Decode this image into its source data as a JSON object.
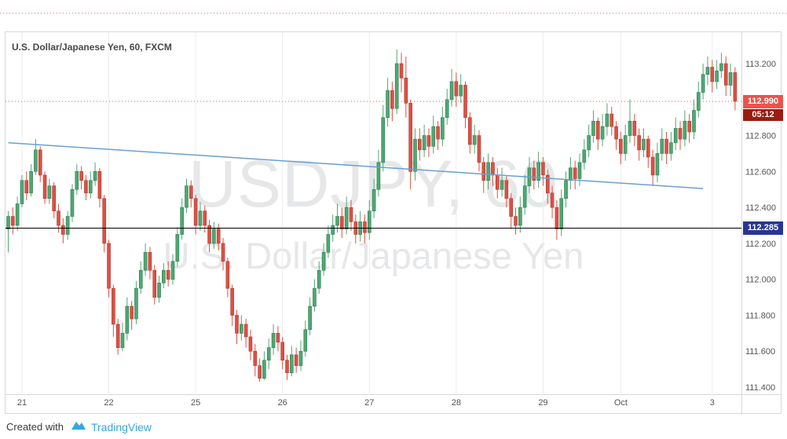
{
  "legend": {
    "title": "U.S. Dollar/Japanese Yen, 60, FXCM"
  },
  "watermark": {
    "line1": "USDJPY, 60",
    "line2": "U.S. Dollar/Japanese Yen"
  },
  "attribution": {
    "created_with": "Created with",
    "brand": "TradingView"
  },
  "chart_data": {
    "type": "candlestick",
    "symbol": "USDJPY",
    "title": "U.S. Dollar/Japanese Yen",
    "interval": "60",
    "provider": "FXCM",
    "ohlc_order": "open,high,low,close",
    "y_axis": [
      113.2,
      112.8,
      112.6,
      112.4,
      112.2,
      112.0,
      111.8,
      111.6,
      111.4
    ],
    "x_ticks": [
      {
        "label": "21",
        "index": 3
      },
      {
        "label": "22",
        "index": 22
      },
      {
        "label": "25",
        "index": 41
      },
      {
        "label": "26",
        "index": 60
      },
      {
        "label": "27",
        "index": 79
      },
      {
        "label": "28",
        "index": 98
      },
      {
        "label": "29",
        "index": 117
      },
      {
        "label": "Oct",
        "index": 134
      },
      {
        "label": "3",
        "index": 154
      }
    ],
    "price_lines": [
      {
        "id": "last-price",
        "price": 112.99,
        "label": "112.990",
        "style": "dotted",
        "color": "#e8544d",
        "axis_label_bg": "#e8544d"
      },
      {
        "id": "level",
        "price": 112.285,
        "label": "112.285",
        "style": "solid",
        "color": "#000000",
        "axis_label_bg": "#283593"
      }
    ],
    "countdown": {
      "text": "05:12",
      "bg": "#9b1c10"
    },
    "upper_line": {
      "price": 113.48,
      "style": "dotted",
      "color": "#e8544d"
    },
    "trendline": {
      "from_index": 0,
      "from_price": 112.76,
      "to_index": 152,
      "to_price": 112.505,
      "color": "#6b9fd4"
    },
    "colors": {
      "up": "#4fa873",
      "up_border": "#2c7a4f",
      "down": "#dd5144",
      "down_border": "#a93a30",
      "grid": "#ececec",
      "axis_text": "#555555",
      "border": "#d6d8dc"
    },
    "candles": [
      [
        112.28,
        112.38,
        112.15,
        112.35
      ],
      [
        112.35,
        112.4,
        112.25,
        112.3
      ],
      [
        112.3,
        112.46,
        112.27,
        112.42
      ],
      [
        112.42,
        112.58,
        112.4,
        112.55
      ],
      [
        112.55,
        112.6,
        112.44,
        112.48
      ],
      [
        112.48,
        112.64,
        112.46,
        112.6
      ],
      [
        112.6,
        112.78,
        112.58,
        112.72
      ],
      [
        112.72,
        112.74,
        112.54,
        112.58
      ],
      [
        112.58,
        112.6,
        112.42,
        112.45
      ],
      [
        112.45,
        112.56,
        112.42,
        112.52
      ],
      [
        112.52,
        112.54,
        112.34,
        112.38
      ],
      [
        112.38,
        112.42,
        112.26,
        112.3
      ],
      [
        112.3,
        112.34,
        112.2,
        112.25
      ],
      [
        112.25,
        112.38,
        112.22,
        112.35
      ],
      [
        112.35,
        112.53,
        112.32,
        112.5
      ],
      [
        112.5,
        112.64,
        112.47,
        112.6
      ],
      [
        112.6,
        112.63,
        112.5,
        112.55
      ],
      [
        112.55,
        112.58,
        112.44,
        112.48
      ],
      [
        112.48,
        112.6,
        112.45,
        112.55
      ],
      [
        112.55,
        112.65,
        112.52,
        112.6
      ],
      [
        112.6,
        112.62,
        112.4,
        112.45
      ],
      [
        112.45,
        112.47,
        112.15,
        112.2
      ],
      [
        112.2,
        112.22,
        111.9,
        111.95
      ],
      [
        111.95,
        111.97,
        111.68,
        111.75
      ],
      [
        111.75,
        111.78,
        111.58,
        111.62
      ],
      [
        111.62,
        111.76,
        111.6,
        111.7
      ],
      [
        111.7,
        111.9,
        111.66,
        111.85
      ],
      [
        111.85,
        111.88,
        111.72,
        111.78
      ],
      [
        111.78,
        111.99,
        111.75,
        111.95
      ],
      [
        111.95,
        112.1,
        111.92,
        112.05
      ],
      [
        112.05,
        112.2,
        112.02,
        112.15
      ],
      [
        112.15,
        112.18,
        112.0,
        112.05
      ],
      [
        112.05,
        112.08,
        111.86,
        111.9
      ],
      [
        111.9,
        112.02,
        111.87,
        111.98
      ],
      [
        111.98,
        112.09,
        111.95,
        112.05
      ],
      [
        112.05,
        112.1,
        111.96,
        112.0
      ],
      [
        112.0,
        112.14,
        111.97,
        112.1
      ],
      [
        112.1,
        112.29,
        112.07,
        112.25
      ],
      [
        112.25,
        112.45,
        112.22,
        112.4
      ],
      [
        112.4,
        112.56,
        112.37,
        112.52
      ],
      [
        112.52,
        112.55,
        112.4,
        112.45
      ],
      [
        112.45,
        112.47,
        112.25,
        112.3
      ],
      [
        112.3,
        112.43,
        112.27,
        112.38
      ],
      [
        112.38,
        112.41,
        112.26,
        112.3
      ],
      [
        112.3,
        112.33,
        112.15,
        112.2
      ],
      [
        112.2,
        112.32,
        112.17,
        112.28
      ],
      [
        112.28,
        112.31,
        112.16,
        112.2
      ],
      [
        112.2,
        112.23,
        112.05,
        112.1
      ],
      [
        112.1,
        112.12,
        111.9,
        111.95
      ],
      [
        111.95,
        111.97,
        111.74,
        111.8
      ],
      [
        111.8,
        111.83,
        111.64,
        111.7
      ],
      [
        111.7,
        111.8,
        111.66,
        111.75
      ],
      [
        111.75,
        111.78,
        111.62,
        111.68
      ],
      [
        111.68,
        111.72,
        111.55,
        111.6
      ],
      [
        111.6,
        111.64,
        111.46,
        111.52
      ],
      [
        111.52,
        111.56,
        111.43,
        111.45
      ],
      [
        111.45,
        111.6,
        111.44,
        111.55
      ],
      [
        111.55,
        111.67,
        111.5,
        111.62
      ],
      [
        111.62,
        111.75,
        111.58,
        111.7
      ],
      [
        111.7,
        111.74,
        111.6,
        111.65
      ],
      [
        111.65,
        111.68,
        111.5,
        111.55
      ],
      [
        111.55,
        111.58,
        111.44,
        111.48
      ],
      [
        111.48,
        111.63,
        111.46,
        111.58
      ],
      [
        111.58,
        111.62,
        111.48,
        111.52
      ],
      [
        111.52,
        111.66,
        111.49,
        111.6
      ],
      [
        111.6,
        111.77,
        111.57,
        111.72
      ],
      [
        111.72,
        111.9,
        111.69,
        111.85
      ],
      [
        111.85,
        112.0,
        111.82,
        111.95
      ],
      [
        111.95,
        112.1,
        111.92,
        112.05
      ],
      [
        112.05,
        112.2,
        112.02,
        112.15
      ],
      [
        112.15,
        112.3,
        112.12,
        112.25
      ],
      [
        112.25,
        112.36,
        112.21,
        112.3
      ],
      [
        112.3,
        112.42,
        112.26,
        112.35
      ],
      [
        112.35,
        112.4,
        112.23,
        112.28
      ],
      [
        112.28,
        112.46,
        112.25,
        112.4
      ],
      [
        112.4,
        112.44,
        112.27,
        112.32
      ],
      [
        112.32,
        112.36,
        112.2,
        112.25
      ],
      [
        112.25,
        112.38,
        112.21,
        112.32
      ],
      [
        112.32,
        112.36,
        112.2,
        112.26
      ],
      [
        112.26,
        112.44,
        112.22,
        112.38
      ],
      [
        112.38,
        112.56,
        112.34,
        112.5
      ],
      [
        112.5,
        112.72,
        112.46,
        112.65
      ],
      [
        112.65,
        112.97,
        112.6,
        112.9
      ],
      [
        112.9,
        113.12,
        112.85,
        113.05
      ],
      [
        113.05,
        113.1,
        112.88,
        112.95
      ],
      [
        112.95,
        113.28,
        112.92,
        113.2
      ],
      [
        113.2,
        113.26,
        113.04,
        113.12
      ],
      [
        113.12,
        113.24,
        112.9,
        112.98
      ],
      [
        112.98,
        113.0,
        112.5,
        112.6
      ],
      [
        112.6,
        112.84,
        112.55,
        112.78
      ],
      [
        112.78,
        112.84,
        112.66,
        112.72
      ],
      [
        112.72,
        112.86,
        112.68,
        112.8
      ],
      [
        112.8,
        112.84,
        112.68,
        112.74
      ],
      [
        112.74,
        112.91,
        112.7,
        112.85
      ],
      [
        112.85,
        112.88,
        112.72,
        112.78
      ],
      [
        112.78,
        112.96,
        112.74,
        112.9
      ],
      [
        112.9,
        113.06,
        112.86,
        113.0
      ],
      [
        113.0,
        113.17,
        112.96,
        113.1
      ],
      [
        113.1,
        113.15,
        112.96,
        113.02
      ],
      [
        113.02,
        113.14,
        112.98,
        113.08
      ],
      [
        113.08,
        113.1,
        112.84,
        112.9
      ],
      [
        112.9,
        112.93,
        112.7,
        112.75
      ],
      [
        112.75,
        112.86,
        112.7,
        112.8
      ],
      [
        112.8,
        112.83,
        112.6,
        112.65
      ],
      [
        112.65,
        112.68,
        112.48,
        112.55
      ],
      [
        112.55,
        112.7,
        112.5,
        112.65
      ],
      [
        112.65,
        112.68,
        112.52,
        112.58
      ],
      [
        112.58,
        112.62,
        112.45,
        112.5
      ],
      [
        112.5,
        112.62,
        112.46,
        112.55
      ],
      [
        112.55,
        112.58,
        112.4,
        112.45
      ],
      [
        112.45,
        112.48,
        112.28,
        112.35
      ],
      [
        112.35,
        112.4,
        112.25,
        112.3
      ],
      [
        112.3,
        112.46,
        112.26,
        112.4
      ],
      [
        112.4,
        112.58,
        112.36,
        112.52
      ],
      [
        112.52,
        112.68,
        112.48,
        112.62
      ],
      [
        112.62,
        112.66,
        112.5,
        112.55
      ],
      [
        112.55,
        112.71,
        112.51,
        112.65
      ],
      [
        112.65,
        112.68,
        112.52,
        112.58
      ],
      [
        112.58,
        112.61,
        112.42,
        112.48
      ],
      [
        112.48,
        112.52,
        112.34,
        112.4
      ],
      [
        112.4,
        112.44,
        112.22,
        112.28
      ],
      [
        112.28,
        112.5,
        112.24,
        112.45
      ],
      [
        112.45,
        112.6,
        112.4,
        112.55
      ],
      [
        112.55,
        112.68,
        112.5,
        112.62
      ],
      [
        112.62,
        112.66,
        112.5,
        112.56
      ],
      [
        112.56,
        112.7,
        112.52,
        112.65
      ],
      [
        112.65,
        112.78,
        112.61,
        112.72
      ],
      [
        112.72,
        112.86,
        112.68,
        112.8
      ],
      [
        112.8,
        112.94,
        112.76,
        112.88
      ],
      [
        112.88,
        112.9,
        112.72,
        112.78
      ],
      [
        112.78,
        112.92,
        112.74,
        112.85
      ],
      [
        112.85,
        112.98,
        112.8,
        112.92
      ],
      [
        112.92,
        112.96,
        112.8,
        112.85
      ],
      [
        112.85,
        112.88,
        112.72,
        112.78
      ],
      [
        112.78,
        112.82,
        112.64,
        112.7
      ],
      [
        112.7,
        112.86,
        112.66,
        112.8
      ],
      [
        112.8,
        113.0,
        112.76,
        112.88
      ],
      [
        112.88,
        112.92,
        112.74,
        112.8
      ],
      [
        112.8,
        112.84,
        112.66,
        112.72
      ],
      [
        112.72,
        112.84,
        112.68,
        112.78
      ],
      [
        112.78,
        112.8,
        112.62,
        112.68
      ],
      [
        112.68,
        112.72,
        112.52,
        112.58
      ],
      [
        112.58,
        112.76,
        112.54,
        112.7
      ],
      [
        112.7,
        112.84,
        112.66,
        112.78
      ],
      [
        112.78,
        112.82,
        112.64,
        112.7
      ],
      [
        112.7,
        112.82,
        112.66,
        112.76
      ],
      [
        112.76,
        112.9,
        112.72,
        112.84
      ],
      [
        112.84,
        112.88,
        112.72,
        112.78
      ],
      [
        112.78,
        112.94,
        112.74,
        112.88
      ],
      [
        112.88,
        112.92,
        112.76,
        112.82
      ],
      [
        112.82,
        113.0,
        112.78,
        112.94
      ],
      [
        112.94,
        113.1,
        112.9,
        113.04
      ],
      [
        113.04,
        113.2,
        113.0,
        113.14
      ],
      [
        113.14,
        113.24,
        113.08,
        113.18
      ],
      [
        113.18,
        113.22,
        113.04,
        113.1
      ],
      [
        113.1,
        113.22,
        113.06,
        113.16
      ],
      [
        113.16,
        113.26,
        113.12,
        113.2
      ],
      [
        113.2,
        113.24,
        113.02,
        113.08
      ],
      [
        113.08,
        113.2,
        113.02,
        113.15
      ],
      [
        113.15,
        113.18,
        112.94,
        112.99
      ]
    ]
  }
}
